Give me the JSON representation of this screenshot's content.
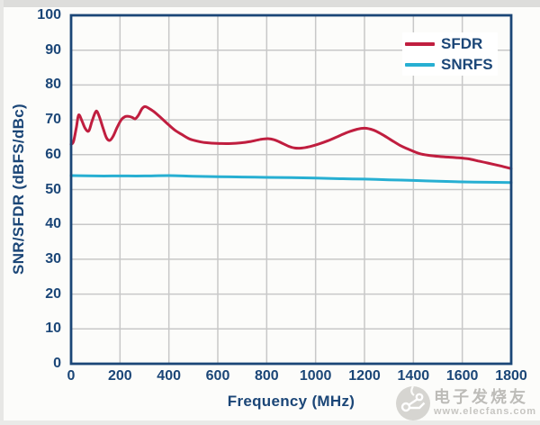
{
  "colors": {
    "navy_text": "#1b4677",
    "frame": "#1b4677",
    "grid": "#c8c8c8",
    "sfdr_red": "#c01e3f",
    "snrfs_cyan": "#27afd2",
    "legend_background": "#ffffff",
    "watermark_gray": "#bdbcb8"
  },
  "chart_data": {
    "type": "line",
    "title": "",
    "xlabel": "Frequency (MHz)",
    "ylabel": "SNR/SFDR (dBFS/dBc)",
    "xlim": [
      0,
      1800
    ],
    "ylim": [
      0,
      100
    ],
    "x_ticks": [
      0,
      200,
      400,
      600,
      800,
      1000,
      1200,
      1400,
      1600,
      1800
    ],
    "y_ticks": [
      0,
      10,
      20,
      30,
      40,
      50,
      60,
      70,
      80,
      90,
      100
    ],
    "grid": true,
    "legend_position": "top-right",
    "series": [
      {
        "name": "SFDR",
        "color": "#c01e3f",
        "points": [
          [
            0,
            63
          ],
          [
            10,
            63.8
          ],
          [
            22,
            68.0
          ],
          [
            31,
            71.4
          ],
          [
            45,
            69.6
          ],
          [
            58,
            67.5
          ],
          [
            72,
            66.8
          ],
          [
            85,
            69.5
          ],
          [
            98,
            72.0
          ],
          [
            106,
            72.4
          ],
          [
            118,
            70.4
          ],
          [
            132,
            67.3
          ],
          [
            145,
            64.8
          ],
          [
            158,
            64.1
          ],
          [
            172,
            65.3
          ],
          [
            188,
            67.8
          ],
          [
            205,
            70.0
          ],
          [
            220,
            70.9
          ],
          [
            235,
            71.0
          ],
          [
            250,
            70.7
          ],
          [
            262,
            70.3
          ],
          [
            275,
            71.3
          ],
          [
            290,
            73.2
          ],
          [
            302,
            73.8
          ],
          [
            318,
            73.3
          ],
          [
            338,
            72.4
          ],
          [
            358,
            71.2
          ],
          [
            380,
            69.8
          ],
          [
            400,
            68.5
          ],
          [
            425,
            67.0
          ],
          [
            455,
            65.7
          ],
          [
            485,
            64.5
          ],
          [
            515,
            63.9
          ],
          [
            545,
            63.5
          ],
          [
            575,
            63.3
          ],
          [
            615,
            63.2
          ],
          [
            655,
            63.2
          ],
          [
            695,
            63.4
          ],
          [
            735,
            63.8
          ],
          [
            775,
            64.4
          ],
          [
            805,
            64.6
          ],
          [
            830,
            64.3
          ],
          [
            860,
            63.4
          ],
          [
            890,
            62.4
          ],
          [
            915,
            61.9
          ],
          [
            945,
            61.9
          ],
          [
            975,
            62.3
          ],
          [
            1010,
            63.0
          ],
          [
            1050,
            64.0
          ],
          [
            1090,
            65.2
          ],
          [
            1130,
            66.4
          ],
          [
            1170,
            67.3
          ],
          [
            1200,
            67.6
          ],
          [
            1235,
            67.1
          ],
          [
            1270,
            65.9
          ],
          [
            1305,
            64.4
          ],
          [
            1345,
            62.7
          ],
          [
            1385,
            61.4
          ],
          [
            1425,
            60.3
          ],
          [
            1465,
            59.8
          ],
          [
            1505,
            59.5
          ],
          [
            1545,
            59.3
          ],
          [
            1585,
            59.1
          ],
          [
            1625,
            58.8
          ],
          [
            1665,
            58.2
          ],
          [
            1705,
            57.6
          ],
          [
            1755,
            56.8
          ],
          [
            1800,
            56.0
          ]
        ]
      },
      {
        "name": "SNRFS",
        "color": "#27afd2",
        "points": [
          [
            0,
            54.0
          ],
          [
            100,
            53.9
          ],
          [
            200,
            53.9
          ],
          [
            300,
            53.9
          ],
          [
            400,
            54.0
          ],
          [
            500,
            53.8
          ],
          [
            600,
            53.7
          ],
          [
            700,
            53.6
          ],
          [
            800,
            53.5
          ],
          [
            900,
            53.4
          ],
          [
            1000,
            53.3
          ],
          [
            1100,
            53.1
          ],
          [
            1200,
            53.0
          ],
          [
            1300,
            52.8
          ],
          [
            1400,
            52.6
          ],
          [
            1500,
            52.4
          ],
          [
            1600,
            52.2
          ],
          [
            1700,
            52.1
          ],
          [
            1800,
            52.0
          ]
        ]
      }
    ]
  },
  "watermark": {
    "logo": "elecfans-circuit-logo",
    "line1": "电子发烧友",
    "line2": "www.elecfans.com"
  }
}
